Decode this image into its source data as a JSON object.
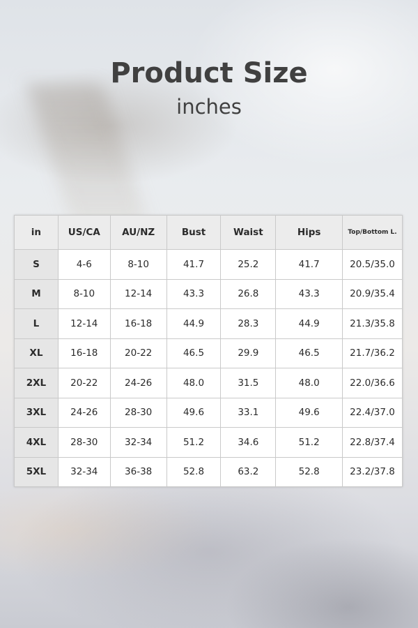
{
  "title": "Product Size",
  "subtitle": "inches",
  "table": {
    "headers": [
      "in",
      "US/CA",
      "AU/NZ",
      "Bust",
      "Waist",
      "Hips",
      "Top/Bottom L."
    ],
    "rows": [
      [
        "S",
        "4-6",
        "8-10",
        "41.7",
        "25.2",
        "41.7",
        "20.5/35.0"
      ],
      [
        "M",
        "8-10",
        "12-14",
        "43.3",
        "26.8",
        "43.3",
        "20.9/35.4"
      ],
      [
        "L",
        "12-14",
        "16-18",
        "44.9",
        "28.3",
        "44.9",
        "21.3/35.8"
      ],
      [
        "XL",
        "16-18",
        "20-22",
        "46.5",
        "29.9",
        "46.5",
        "21.7/36.2"
      ],
      [
        "2XL",
        "20-22",
        "24-26",
        "48.0",
        "31.5",
        "48.0",
        "22.0/36.6"
      ],
      [
        "3XL",
        "24-26",
        "28-30",
        "49.6",
        "33.1",
        "49.6",
        "22.4/37.0"
      ],
      [
        "4XL",
        "28-30",
        "32-34",
        "51.2",
        "34.6",
        "51.2",
        "22.8/37.4"
      ],
      [
        "5XL",
        "32-34",
        "36-38",
        "52.8",
        "63.2",
        "52.8",
        "23.2/37.8"
      ]
    ]
  }
}
